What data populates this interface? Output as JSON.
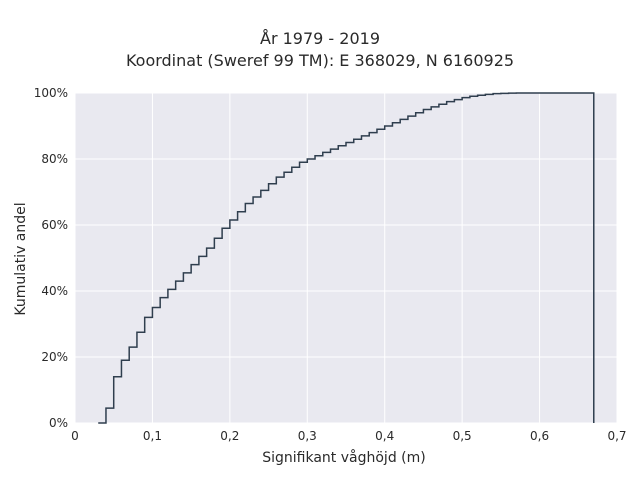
{
  "chart_data": {
    "type": "line",
    "subtype": "step-ecdf",
    "title_line1": "År 1979 - 2019",
    "title_line2": "Koordinat (Sweref 99 TM): E 368029, N 6160925",
    "xlabel": "Signifikant våghöjd (m)",
    "ylabel": "Kumulativ andel",
    "xlim": [
      0,
      0.7
    ],
    "ylim": [
      0,
      1
    ],
    "x_ticks": [
      0,
      0.1,
      0.2,
      0.3,
      0.4,
      0.5,
      0.6,
      0.7
    ],
    "x_tick_labels": [
      "0",
      "0,1",
      "0,2",
      "0,3",
      "0,4",
      "0,5",
      "0,6",
      "0,7"
    ],
    "y_ticks": [
      0,
      0.2,
      0.4,
      0.6,
      0.8,
      1.0
    ],
    "y_tick_labels": [
      "0%",
      "20%",
      "40%",
      "60%",
      "80%",
      "100%"
    ],
    "grid": true,
    "colors": {
      "plot_background": "#e9e9f0",
      "grid": "#ffffff",
      "line": "#2f3e4e"
    },
    "x": [
      0.03,
      0.04,
      0.05,
      0.06,
      0.07,
      0.08,
      0.09,
      0.1,
      0.11,
      0.12,
      0.13,
      0.14,
      0.15,
      0.16,
      0.17,
      0.18,
      0.19,
      0.2,
      0.21,
      0.22,
      0.23,
      0.24,
      0.25,
      0.26,
      0.27,
      0.28,
      0.29,
      0.3,
      0.31,
      0.32,
      0.33,
      0.34,
      0.35,
      0.36,
      0.37,
      0.38,
      0.39,
      0.4,
      0.41,
      0.42,
      0.43,
      0.44,
      0.45,
      0.46,
      0.47,
      0.48,
      0.49,
      0.5,
      0.51,
      0.52,
      0.53,
      0.54,
      0.55,
      0.56,
      0.57,
      0.58,
      0.59,
      0.6,
      0.61,
      0.62,
      0.63,
      0.64,
      0.65,
      0.66,
      0.67
    ],
    "y": [
      0.0,
      0.045,
      0.14,
      0.19,
      0.23,
      0.275,
      0.32,
      0.35,
      0.38,
      0.405,
      0.43,
      0.455,
      0.48,
      0.505,
      0.53,
      0.56,
      0.59,
      0.615,
      0.64,
      0.665,
      0.685,
      0.705,
      0.725,
      0.745,
      0.76,
      0.775,
      0.79,
      0.8,
      0.81,
      0.82,
      0.83,
      0.84,
      0.85,
      0.86,
      0.87,
      0.88,
      0.89,
      0.9,
      0.91,
      0.92,
      0.93,
      0.94,
      0.95,
      0.958,
      0.966,
      0.974,
      0.98,
      0.986,
      0.99,
      0.993,
      0.996,
      0.998,
      0.999,
      0.9995,
      1.0,
      1.0,
      1.0,
      1.0,
      1.0,
      1.0,
      1.0,
      1.0,
      1.0,
      1.0,
      0.0
    ]
  }
}
